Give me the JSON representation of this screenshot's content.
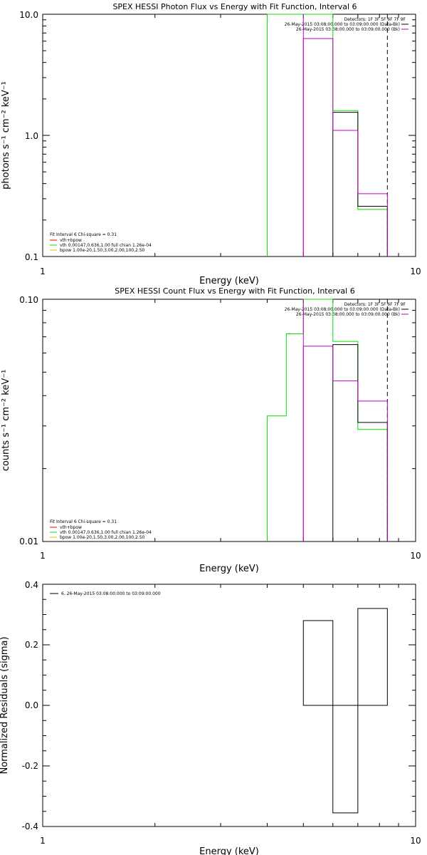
{
  "colors": {
    "axis": "#000000",
    "model": "#ff0000",
    "vth": "#00e000",
    "bpow": "#e0c000",
    "bk": "#c000c0",
    "data": "#000000"
  },
  "chart_data": [
    {
      "type": "line",
      "title": "SPEX HESSI Photon Flux vs Energy with Fit Function, Interval 6",
      "xlabel": "Energy (keV)",
      "ylabel": "photons s⁻¹ cm⁻² keV⁻¹",
      "xscale": "log",
      "yscale": "log",
      "xlim": [
        1,
        10
      ],
      "ylim": [
        0.1,
        10
      ],
      "x_ticks": [
        "1",
        "10"
      ],
      "y_ticks": [
        "0.1",
        "1.0",
        "10.0"
      ],
      "dashed_line_x": 8.4,
      "legend_topright": [
        "Detectors: 1F 3F 5F 6F 7F 9F",
        "26-May-2015 03:08:00.000 to 03:09:00.000 (Data-Bk)",
        "26-May-2015 03:08:00.000 to 03:09:00.000 (Bk)"
      ],
      "legend_bottomleft": [
        "Fit Interval 6   Chi-square = 0.31",
        "vth+bpow",
        "vth 0.00147,0.636,1.00  full chian 1.26e-04",
        "bpow 1.00e-20,1.50,3.00,2.00,100,2.50"
      ],
      "series": [
        {
          "role": "vth",
          "steps": [
            [
              4.0,
              5.0,
              10.0
            ],
            [
              5.0,
              6.0,
              10.0
            ],
            [
              6.0,
              7.0,
              1.6
            ],
            [
              7.0,
              8.4,
              0.245
            ]
          ]
        },
        {
          "role": "data",
          "steps": [
            [
              6.0,
              7.0,
              1.55
            ],
            [
              7.0,
              8.4,
              0.26
            ]
          ]
        },
        {
          "role": "bk",
          "steps": [
            [
              5.0,
              6.0,
              6.3
            ],
            [
              6.0,
              7.0,
              1.1
            ],
            [
              7.0,
              8.4,
              0.33
            ]
          ]
        }
      ],
      "vlines": [
        {
          "role": "bk",
          "x": 5.0
        }
      ]
    },
    {
      "type": "line",
      "title": "SPEX HESSI Count Flux vs Energy with Fit Function, Interval 6",
      "xlabel": "Energy (keV)",
      "ylabel": "counts s⁻¹ cm⁻² keV⁻¹",
      "xscale": "log",
      "yscale": "log",
      "xlim": [
        1,
        10
      ],
      "ylim": [
        0.01,
        0.1
      ],
      "x_ticks": [
        "1",
        "10"
      ],
      "y_ticks": [
        "0.01",
        "0.10"
      ],
      "dashed_line_x": 8.4,
      "legend_topright": [
        "Detectors: 1F 3F 5F 6F 7F 9F",
        "26-May-2015 03:08:00.000 to 03:09:00.000 (Data-Bk)",
        "26-May-2015 03:08:00.000 to 03:09:00.000 (Bk)"
      ],
      "legend_bottomleft": [
        "Fit Interval 6   Chi-square = 0.31",
        "vth+bpow",
        "vth 0.00147,0.636,1.00  full chian 1.26e-04",
        "bpow 1.00e-20,1.50,3.00,2.00,100,2.50"
      ],
      "series": [
        {
          "role": "vth",
          "steps": [
            [
              4.0,
              4.5,
              0.033
            ],
            [
              4.5,
              5.0,
              0.072
            ],
            [
              5.0,
              6.0,
              0.1
            ],
            [
              6.0,
              7.0,
              0.067
            ],
            [
              7.0,
              8.4,
              0.029
            ]
          ]
        },
        {
          "role": "data",
          "steps": [
            [
              6.0,
              7.0,
              0.065
            ],
            [
              7.0,
              8.4,
              0.031
            ]
          ]
        },
        {
          "role": "bk",
          "steps": [
            [
              5.0,
              6.0,
              0.064
            ],
            [
              6.0,
              7.0,
              0.046
            ],
            [
              7.0,
              8.4,
              0.038
            ]
          ]
        }
      ],
      "vlines": [
        {
          "role": "bk",
          "x": 5.0
        }
      ]
    },
    {
      "type": "bar",
      "title": "",
      "xlabel": "Energy (keV)",
      "ylabel": "Normalized Residuals (sigma)",
      "xscale": "log",
      "yscale": "linear",
      "xlim": [
        1,
        10
      ],
      "ylim": [
        -0.4,
        0.4
      ],
      "x_ticks": [
        "1",
        "10"
      ],
      "y_ticks": [
        "-0.4",
        "-0.2",
        "0.0",
        "0.2",
        "0.4"
      ],
      "legend": "6. 26-May-2015 03:08:00.000 to 03:09:00.000",
      "series": [
        {
          "role": "data",
          "steps": [
            [
              5.0,
              6.0,
              0.28
            ],
            [
              6.0,
              7.0,
              -0.355
            ],
            [
              7.0,
              8.4,
              0.32
            ]
          ]
        }
      ]
    }
  ]
}
